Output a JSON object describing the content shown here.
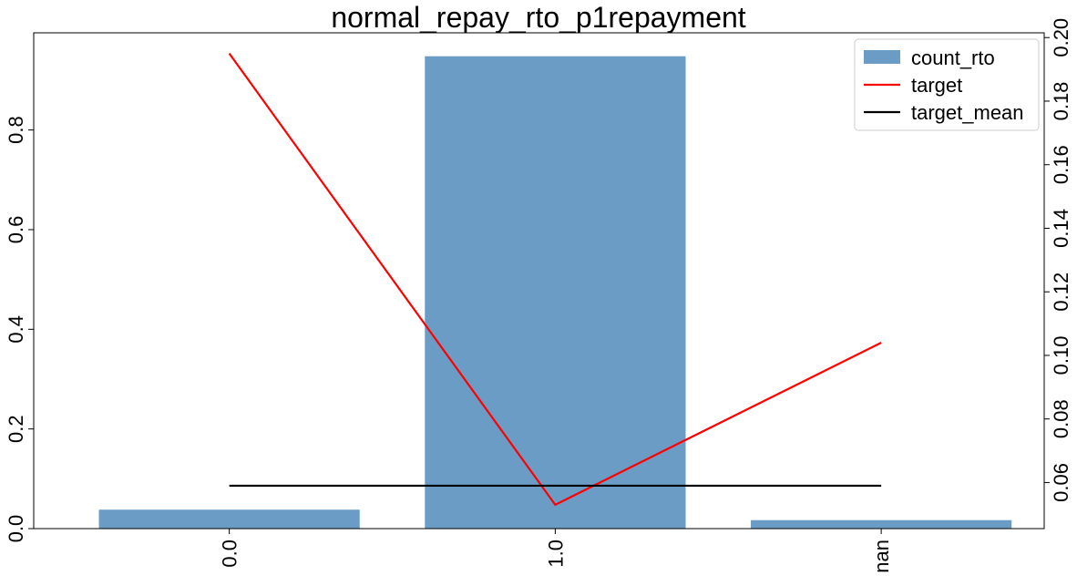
{
  "chart_data": {
    "type": "bar",
    "title": "normal_repay_rto_p1repayment",
    "categories": [
      "0.0",
      "1.0",
      "nan"
    ],
    "series": [
      {
        "name": "count_rto",
        "kind": "bar",
        "axis": "left",
        "values": [
          0.038,
          0.948,
          0.017
        ],
        "color": "#6a9cc5"
      },
      {
        "name": "target",
        "kind": "line",
        "axis": "right",
        "values": [
          0.195,
          0.053,
          0.104
        ],
        "color": "#ff0000"
      },
      {
        "name": "target_mean",
        "kind": "line",
        "axis": "right",
        "values": [
          0.059,
          0.059,
          0.059
        ],
        "color": "#000000"
      }
    ],
    "left_axis": {
      "ylim": [
        0,
        0.995
      ],
      "ticks": [
        0.0,
        0.2,
        0.4,
        0.6,
        0.8
      ],
      "tick_labels": [
        "0.0",
        "0.2",
        "0.4",
        "0.6",
        "0.8"
      ]
    },
    "right_axis": {
      "ylim": [
        0.0455,
        0.2015
      ],
      "ticks": [
        0.06,
        0.08,
        0.1,
        0.12,
        0.14,
        0.16,
        0.18,
        0.2
      ],
      "tick_labels": [
        "0.06",
        "0.08",
        "0.10",
        "0.12",
        "0.14",
        "0.16",
        "0.18",
        "0.20"
      ]
    },
    "legend": {
      "position": "top-right",
      "entries": [
        "count_rto",
        "target",
        "target_mean"
      ]
    },
    "grid": false
  }
}
